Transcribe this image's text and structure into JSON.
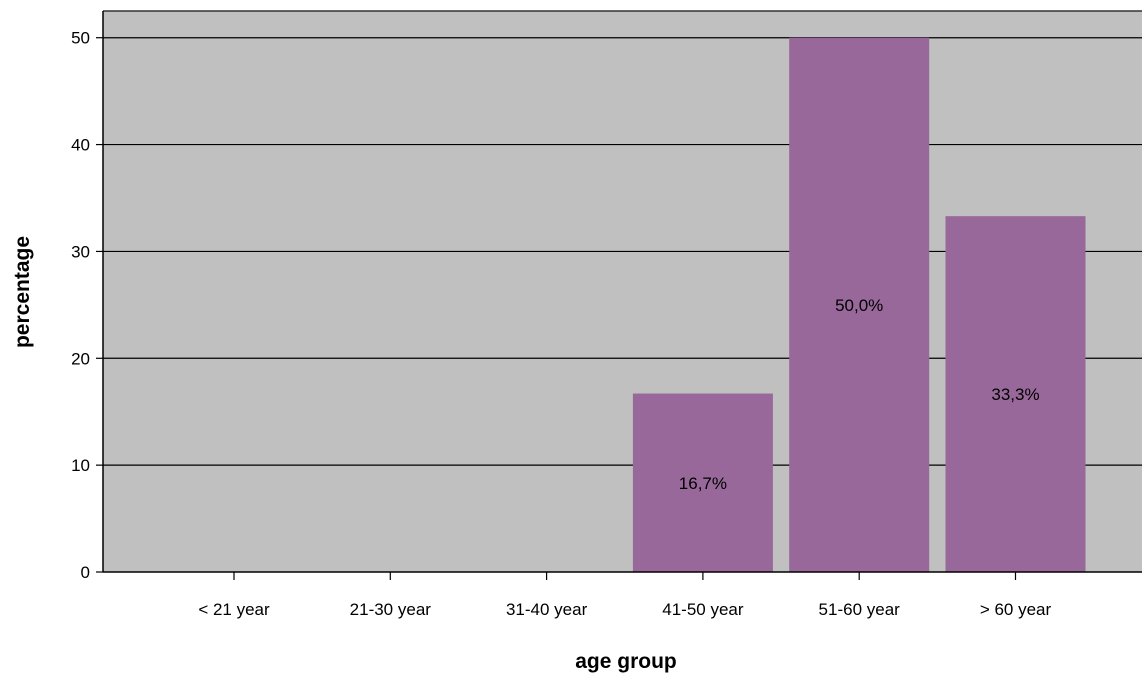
{
  "chart_data": {
    "type": "bar",
    "title": "",
    "xlabel": "age group",
    "ylabel": "percentage",
    "categories": [
      "< 21 year",
      "21-30 year",
      "31-40 year",
      "41-50 year",
      "51-60 year",
      "> 60 year"
    ],
    "values": [
      0,
      0,
      0,
      16.7,
      50.0,
      33.3
    ],
    "data_labels": [
      "",
      "",
      "",
      "16,7%",
      "50,0%",
      "33,3%"
    ],
    "ylim": [
      0,
      52.5
    ],
    "yticks": [
      0,
      10,
      20,
      30,
      40,
      50
    ],
    "ytick_labels": [
      "0",
      "10",
      "20",
      "30",
      "40",
      "50"
    ],
    "grid": true,
    "legend": "none",
    "colors": {
      "plot_background": "#c0c0c0",
      "bar_fill": "#98689a",
      "gridline": "#000000"
    }
  }
}
